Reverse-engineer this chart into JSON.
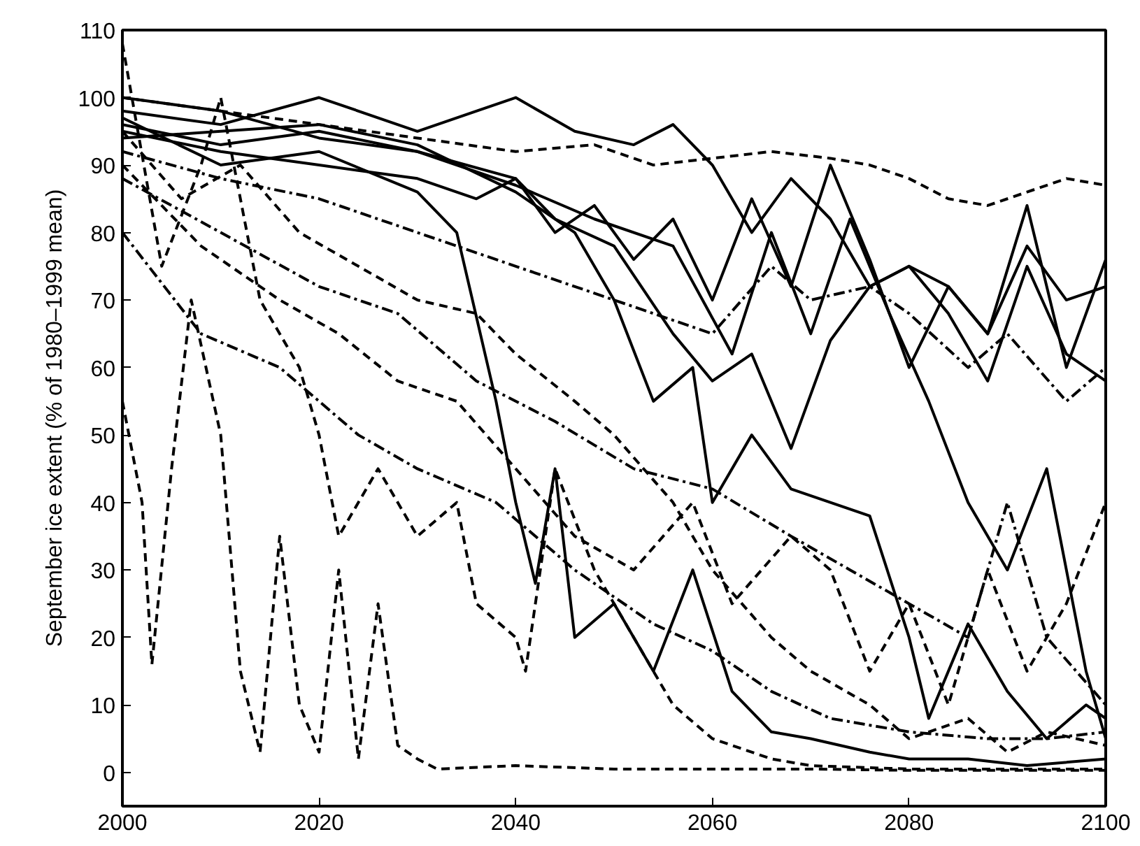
{
  "chart_data": {
    "type": "line",
    "ylabel": "September ice extent (% of 1980–1999 mean)",
    "xlim": [
      2000,
      2100
    ],
    "ylim": [
      -5,
      110
    ],
    "xticks": [
      2000,
      2020,
      2040,
      2060,
      2080,
      2100
    ],
    "yticks": [
      0,
      10,
      20,
      30,
      40,
      50,
      60,
      70,
      80,
      90,
      100,
      110
    ],
    "grid": false,
    "marker": "none",
    "series": [
      {
        "color": "#000000",
        "line_style": "solid",
        "x": [
          2000,
          2010,
          2020,
          2030,
          2036,
          2040,
          2046,
          2052,
          2056,
          2060,
          2064,
          2068,
          2072,
          2076,
          2080,
          2084,
          2088,
          2092,
          2096,
          2100
        ],
        "values": [
          98,
          96,
          100,
          95,
          98,
          100,
          95,
          93,
          96,
          90,
          80,
          88,
          82,
          72,
          75,
          72,
          65,
          78,
          70,
          72
        ]
      },
      {
        "color": "#000000",
        "line_style": "solid",
        "x": [
          2000,
          2010,
          2020,
          2030,
          2036,
          2040,
          2044,
          2048,
          2052,
          2056,
          2060,
          2064,
          2068,
          2072,
          2076,
          2080,
          2084,
          2088,
          2092,
          2096,
          2100
        ],
        "values": [
          95,
          92,
          90,
          88,
          85,
          88,
          80,
          84,
          76,
          82,
          70,
          85,
          72,
          90,
          76,
          60,
          72,
          65,
          84,
          60,
          76
        ]
      },
      {
        "color": "#000000",
        "line_style": "solid",
        "x": [
          2000,
          2010,
          2020,
          2030,
          2034,
          2038,
          2040,
          2042,
          2044,
          2046,
          2050,
          2054,
          2058,
          2062,
          2066,
          2070,
          2076,
          2080,
          2086,
          2092,
          2100
        ],
        "values": [
          97,
          90,
          92,
          86,
          80,
          55,
          40,
          28,
          45,
          20,
          25,
          15,
          30,
          12,
          6,
          5,
          3,
          2,
          2,
          1,
          2
        ]
      },
      {
        "color": "#000000",
        "line_style": "solid",
        "x": [
          2000,
          2010,
          2020,
          2030,
          2040,
          2046,
          2050,
          2054,
          2058,
          2060,
          2064,
          2068,
          2072,
          2076,
          2080,
          2082,
          2086,
          2090,
          2094,
          2098,
          2100
        ],
        "values": [
          94,
          95,
          96,
          93,
          86,
          80,
          70,
          55,
          60,
          40,
          50,
          42,
          40,
          38,
          20,
          8,
          22,
          12,
          5,
          10,
          8
        ]
      },
      {
        "color": "#000000",
        "line_style": "solid",
        "x": [
          2000,
          2010,
          2020,
          2030,
          2040,
          2048,
          2056,
          2062,
          2066,
          2070,
          2074,
          2078,
          2082,
          2086,
          2090,
          2094,
          2098,
          2100
        ],
        "values": [
          96,
          93,
          95,
          92,
          87,
          82,
          78,
          62,
          80,
          65,
          82,
          68,
          55,
          40,
          30,
          45,
          15,
          5
        ]
      },
      {
        "color": "#000000",
        "line_style": "solid",
        "x": [
          2000,
          2010,
          2020,
          2030,
          2040,
          2044,
          2050,
          2056,
          2060,
          2064,
          2068,
          2072,
          2076,
          2080,
          2084,
          2088,
          2092,
          2096,
          2100
        ],
        "values": [
          100,
          98,
          94,
          92,
          88,
          82,
          78,
          65,
          58,
          62,
          48,
          64,
          72,
          75,
          68,
          58,
          75,
          62,
          58
        ]
      },
      {
        "color": "#000000",
        "line_style": "dashed",
        "x": [
          2000,
          2002,
          2003,
          2005,
          2007,
          2010,
          2012,
          2014,
          2016,
          2018,
          2020,
          2022,
          2024,
          2026,
          2028,
          2030,
          2032,
          2040,
          2050,
          2060,
          2070,
          2080,
          2090,
          2100
        ],
        "values": [
          55,
          40,
          16,
          45,
          70,
          50,
          15,
          3,
          35,
          10,
          3,
          30,
          2,
          25,
          4,
          2,
          0.5,
          1,
          0.5,
          0.5,
          0.5,
          0.3,
          0.3,
          0.3
        ]
      },
      {
        "color": "#000000",
        "line_style": "dashed",
        "x": [
          2000,
          2004,
          2008,
          2010,
          2014,
          2018,
          2020,
          2022,
          2026,
          2030,
          2034,
          2036,
          2040,
          2041,
          2044,
          2048,
          2052,
          2056,
          2060,
          2066,
          2070,
          2080,
          2090,
          2100
        ],
        "values": [
          108,
          75,
          90,
          100,
          70,
          60,
          50,
          35,
          45,
          35,
          40,
          25,
          20,
          15,
          45,
          30,
          20,
          10,
          5,
          2,
          1,
          0.5,
          0.5,
          0.5
        ]
      },
      {
        "color": "#000000",
        "line_style": "dashed",
        "x": [
          2000,
          2006,
          2012,
          2018,
          2024,
          2030,
          2036,
          2040,
          2046,
          2050,
          2056,
          2060,
          2066,
          2070,
          2076,
          2080,
          2086,
          2090,
          2094,
          2100
        ],
        "values": [
          95,
          85,
          90,
          80,
          75,
          70,
          68,
          62,
          55,
          50,
          40,
          30,
          20,
          15,
          10,
          5,
          8,
          3,
          6,
          4
        ]
      },
      {
        "color": "#000000",
        "line_style": "dashed",
        "x": [
          2000,
          2010,
          2020,
          2030,
          2040,
          2048,
          2054,
          2060,
          2066,
          2072,
          2076,
          2080,
          2084,
          2088,
          2092,
          2096,
          2100
        ],
        "values": [
          100,
          98,
          96,
          94,
          92,
          93,
          90,
          91,
          92,
          91,
          90,
          88,
          85,
          84,
          86,
          88,
          87
        ]
      },
      {
        "color": "#000000",
        "line_style": "dashed",
        "x": [
          2000,
          2008,
          2016,
          2022,
          2028,
          2034,
          2040,
          2046,
          2052,
          2058,
          2062,
          2068,
          2072,
          2076,
          2080,
          2084,
          2088,
          2092,
          2096,
          2100
        ],
        "values": [
          90,
          78,
          70,
          65,
          58,
          55,
          45,
          35,
          30,
          40,
          25,
          35,
          30,
          15,
          25,
          10,
          30,
          15,
          25,
          40
        ]
      },
      {
        "color": "#000000",
        "line_style": "dashdot",
        "x": [
          2000,
          2010,
          2020,
          2030,
          2040,
          2050,
          2060,
          2066,
          2070,
          2076,
          2080,
          2086,
          2090,
          2096,
          2100
        ],
        "values": [
          92,
          88,
          85,
          80,
          75,
          70,
          65,
          75,
          70,
          72,
          68,
          60,
          65,
          55,
          60
        ]
      },
      {
        "color": "#000000",
        "line_style": "dashdot",
        "x": [
          2000,
          2010,
          2020,
          2028,
          2036,
          2044,
          2052,
          2060,
          2068,
          2074,
          2080,
          2086,
          2090,
          2094,
          2100
        ],
        "values": [
          88,
          80,
          72,
          68,
          58,
          52,
          45,
          42,
          35,
          30,
          25,
          20,
          40,
          20,
          10
        ]
      },
      {
        "color": "#000000",
        "line_style": "dashdot",
        "x": [
          2000,
          2008,
          2016,
          2024,
          2030,
          2038,
          2046,
          2054,
          2060,
          2066,
          2072,
          2080,
          2088,
          2094,
          2100
        ],
        "values": [
          80,
          65,
          60,
          50,
          45,
          40,
          30,
          22,
          18,
          12,
          8,
          6,
          5,
          5,
          6
        ]
      }
    ]
  }
}
